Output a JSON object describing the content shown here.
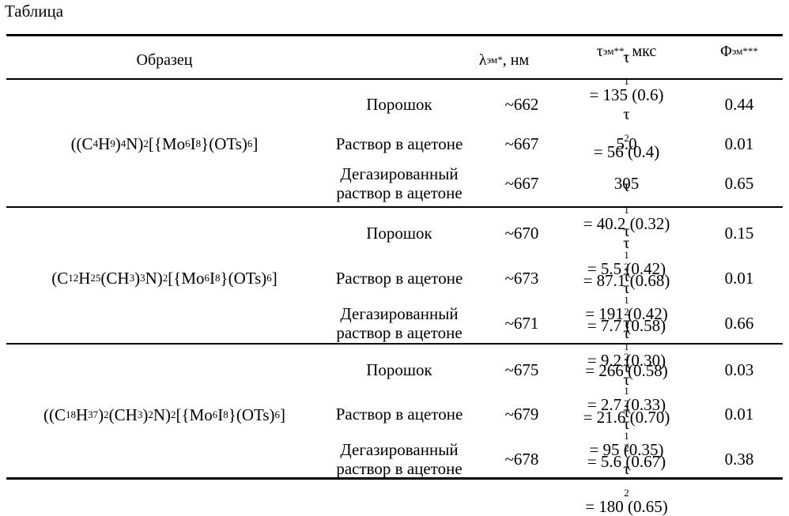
{
  "caption": "Таблица",
  "header": {
    "sample": "Образец",
    "lambda_main": "λ",
    "lambda_sub": "эм",
    "lambda_sup": "*",
    "lambda_unit": ", нм",
    "tau_main": "τ",
    "tau_sub": "эм",
    "tau_sup": "**",
    "tau_unit": ", мкс",
    "phi_main": "Φ",
    "phi_sub": "эм",
    "phi_sup": "***"
  },
  "groups": [
    {
      "compound": [
        {
          "t": "((C"
        },
        {
          "s": "4"
        },
        {
          "t": "H"
        },
        {
          "s": "9"
        },
        {
          "t": ")"
        },
        {
          "s": "4"
        },
        {
          "t": "N)"
        },
        {
          "s": "2"
        },
        {
          "t": "[{Mo"
        },
        {
          "s": "6"
        },
        {
          "t": "I"
        },
        {
          "s": "8"
        },
        {
          "t": "}(OTs)"
        },
        {
          "s": "6"
        },
        {
          "t": "]"
        }
      ],
      "rows": [
        {
          "form": [
            "Порошок"
          ],
          "lambda": "~662",
          "tau": [
            {
              "label": "τ",
              "sub": "1",
              "val": " = 135 (0.6)"
            },
            {
              "label": "τ",
              "sub": "2",
              "val": " = 56 (0.4)"
            }
          ],
          "phi": "0.44"
        },
        {
          "form": [
            "Раствор в ацетоне"
          ],
          "lambda": "~667",
          "tau": [
            {
              "label": "",
              "sub": "",
              "val": "5.0"
            }
          ],
          "phi": "0.01"
        },
        {
          "form": [
            "Дегазированный",
            "раствор в ацетоне"
          ],
          "lambda": "~667",
          "tau": [
            {
              "label": "",
              "sub": "",
              "val": "305"
            }
          ],
          "phi": "0.65"
        }
      ]
    },
    {
      "compound": [
        {
          "t": "(C"
        },
        {
          "s": "12"
        },
        {
          "t": "H"
        },
        {
          "s": "25"
        },
        {
          "t": "(CH"
        },
        {
          "s": "3"
        },
        {
          "t": ")"
        },
        {
          "s": "3"
        },
        {
          "t": "N)"
        },
        {
          "s": "2"
        },
        {
          "t": "[{Mo"
        },
        {
          "s": "6"
        },
        {
          "t": "I"
        },
        {
          "s": "8"
        },
        {
          "t": "}(OTs)"
        },
        {
          "s": "6"
        },
        {
          "t": "]"
        }
      ],
      "rows": [
        {
          "form": [
            "Порошок"
          ],
          "lambda": "~670",
          "tau": [
            {
              "label": "τ",
              "sub": "1",
              "val": " = 40.2 (0.32)"
            },
            {
              "label": "τ",
              "sub": "2",
              "val": " = 87.1 (0.68)"
            }
          ],
          "phi": "0.15"
        },
        {
          "form": [
            "Раствор в ацетоне"
          ],
          "lambda": "~673",
          "tau": [
            {
              "label": "τ",
              "sub": "1",
              "val": " = 5.5 (0.42)"
            },
            {
              "label": "τ",
              "sub": "2",
              "val": " = 7.7 (0.58)"
            }
          ],
          "phi": "0.01"
        },
        {
          "form": [
            "Дегазированный",
            "раствор в ацетоне"
          ],
          "lambda": "~671",
          "tau": [
            {
              "label": "τ",
              "sub": "1",
              "val": " = 191 (0.42)"
            },
            {
              "label": "τ",
              "sub": "2",
              "val": " = 266 (0.58)"
            }
          ],
          "phi": "0.66"
        }
      ]
    },
    {
      "compound": [
        {
          "t": "((C"
        },
        {
          "s": "18"
        },
        {
          "t": "H"
        },
        {
          "s": "37"
        },
        {
          "t": ")"
        },
        {
          "s": "2"
        },
        {
          "t": "(CH"
        },
        {
          "s": "3"
        },
        {
          "t": ")"
        },
        {
          "s": "2"
        },
        {
          "t": "N)"
        },
        {
          "s": "2"
        },
        {
          "t": "[{Mo"
        },
        {
          "s": "6"
        },
        {
          "t": "I"
        },
        {
          "s": "8"
        },
        {
          "t": "}(OTs)"
        },
        {
          "s": "6"
        },
        {
          "t": "]"
        }
      ],
      "rows": [
        {
          "form": [
            "Порошок"
          ],
          "lambda": "~675",
          "tau": [
            {
              "label": "τ",
              "sub": "1",
              "val": " = 9.2 (0.30)"
            },
            {
              "label": "τ",
              "sub": "2",
              "val": " = 21.6 (0.70)"
            }
          ],
          "phi": "0.03"
        },
        {
          "form": [
            "Раствор в ацетоне"
          ],
          "lambda": "~679",
          "tau": [
            {
              "label": "τ",
              "sub": "1",
              "val": " = 2.7 (0.33)"
            },
            {
              "label": "τ",
              "sub": "2",
              "val": " = 5.6 (0.67)"
            }
          ],
          "phi": "0.01"
        },
        {
          "form": [
            "Дегазированный",
            "раствор в ацетоне"
          ],
          "lambda": "~678",
          "tau": [
            {
              "label": "τ",
              "sub": "1",
              "val": " = 95 (0.35)"
            },
            {
              "label": "τ",
              "sub": "2",
              "val": " = 180 (0.65)"
            }
          ],
          "phi": "0.38"
        }
      ]
    }
  ]
}
